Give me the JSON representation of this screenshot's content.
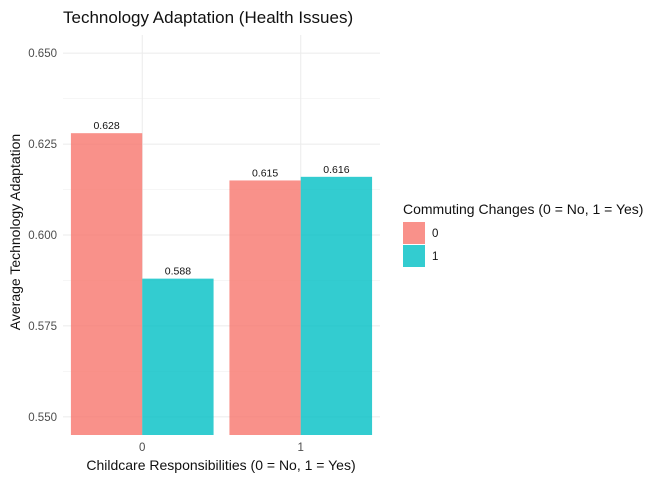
{
  "chart_data": {
    "type": "bar",
    "title": "Technology Adaptation (Health Issues)",
    "xlabel": "Childcare Responsibilities (0 = No, 1 = Yes)",
    "ylabel": "Average Technology Adaptation",
    "categories": [
      "0",
      "1"
    ],
    "series": [
      {
        "name": "0",
        "values": [
          0.628,
          0.615
        ],
        "labels": [
          "0.628",
          "0.615"
        ],
        "color": "#F8766D"
      },
      {
        "name": "1",
        "values": [
          0.588,
          0.616
        ],
        "labels": [
          "0.588",
          "0.616"
        ],
        "color": "#00BFC4"
      }
    ],
    "ylim": [
      0.545,
      0.655
    ],
    "yticks": [
      0.55,
      0.575,
      0.6,
      0.625,
      0.65
    ],
    "ytick_labels": [
      "0.550",
      "0.575",
      "0.600",
      "0.625",
      "0.650"
    ],
    "legend": {
      "title": "Commuting Changes (0 = No, 1 = Yes)",
      "placement": "right"
    },
    "grid": true
  }
}
